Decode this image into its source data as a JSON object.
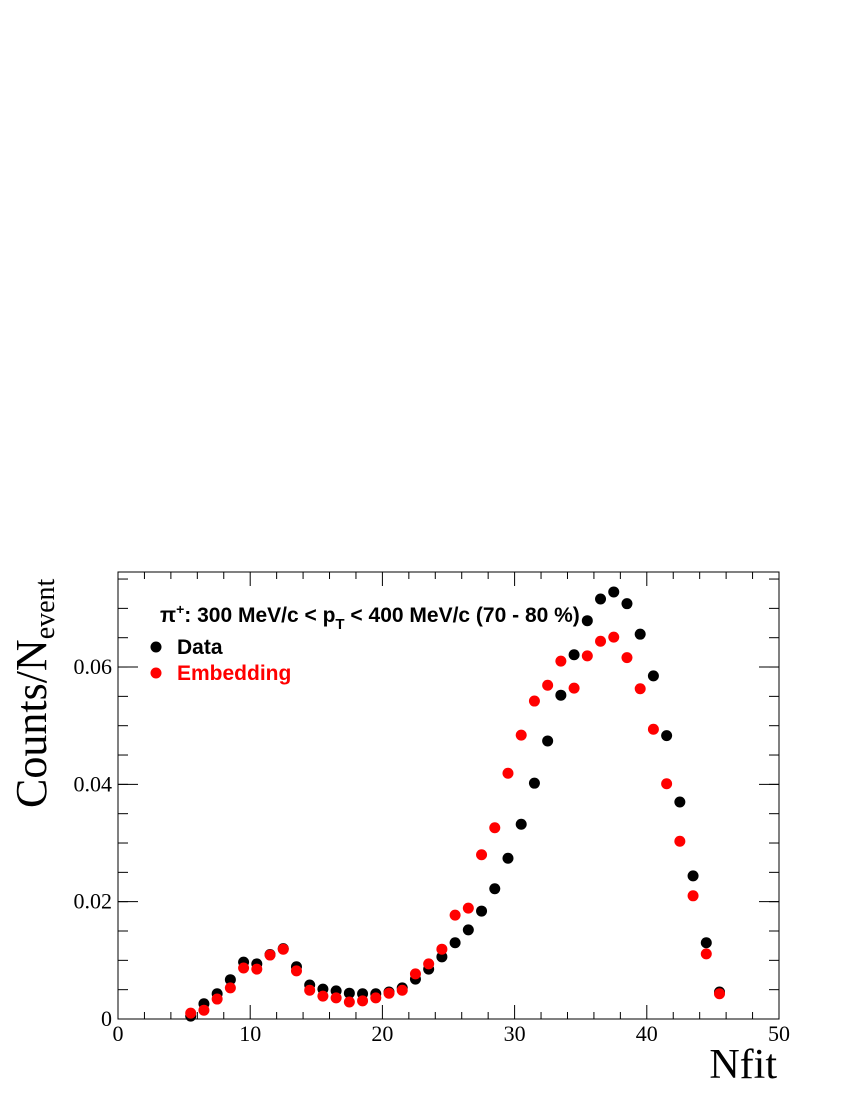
{
  "chart_data": {
    "type": "scatter",
    "title": [
      "π",
      "+",
      ": 300 MeV/c < p",
      "T",
      " < 400 MeV/c (70 - 80 %)"
    ],
    "xlabel": "Nfit",
    "ylabel": [
      "Counts/N",
      "event"
    ],
    "xlim": [
      0,
      50
    ],
    "ylim": [
      0,
      0.0762
    ],
    "xticks": [
      0,
      10,
      20,
      30,
      40,
      50
    ],
    "yticks": [
      0,
      0.02,
      0.04,
      0.06
    ],
    "legend": "top-left",
    "x": [
      5.5,
      6.5,
      7.5,
      8.5,
      9.5,
      10.5,
      11.5,
      12.5,
      13.5,
      14.5,
      15.5,
      16.5,
      17.5,
      18.5,
      19.5,
      20.5,
      21.5,
      22.5,
      23.5,
      24.5,
      25.5,
      26.5,
      27.5,
      28.5,
      29.5,
      30.5,
      31.5,
      32.5,
      33.5,
      34.5,
      35.5,
      36.5,
      37.5,
      38.5,
      39.5,
      40.5,
      41.5,
      42.5,
      43.5,
      44.5,
      45.5
    ],
    "series": [
      {
        "name": "Data",
        "color": "#000000",
        "values": [
          0.0005,
          0.0026,
          0.0043,
          0.0067,
          0.0097,
          0.0094,
          0.011,
          0.012,
          0.0089,
          0.0058,
          0.0051,
          0.0048,
          0.0044,
          0.0043,
          0.0043,
          0.0046,
          0.0053,
          0.0068,
          0.0085,
          0.0106,
          0.013,
          0.0152,
          0.0184,
          0.0222,
          0.0274,
          0.0332,
          0.0402,
          0.0474,
          0.0552,
          0.0621,
          0.0679,
          0.0716,
          0.0728,
          0.0708,
          0.0656,
          0.0585,
          0.0483,
          0.037,
          0.0244,
          0.013,
          0.0046
        ]
      },
      {
        "name": "Embedding",
        "color": "#ff0000",
        "values": [
          0.001,
          0.0015,
          0.0034,
          0.0053,
          0.0087,
          0.0085,
          0.0109,
          0.0119,
          0.0082,
          0.0049,
          0.0039,
          0.0036,
          0.0029,
          0.0031,
          0.0036,
          0.0044,
          0.0049,
          0.0077,
          0.0094,
          0.0119,
          0.0177,
          0.0189,
          0.028,
          0.0326,
          0.0419,
          0.0484,
          0.0542,
          0.0569,
          0.061,
          0.0564,
          0.0619,
          0.0644,
          0.0651,
          0.0616,
          0.0563,
          0.0494,
          0.0401,
          0.0303,
          0.021,
          0.0111,
          0.0043
        ]
      }
    ]
  }
}
